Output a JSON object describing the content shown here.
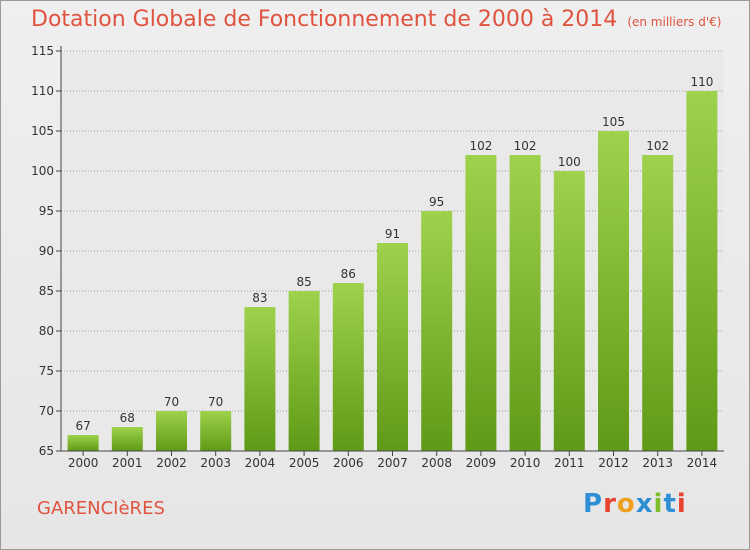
{
  "header": {
    "title": "Dotation Globale de Fonctionnement de 2000 à 2014",
    "unit": "(en milliers d'€)"
  },
  "footer": {
    "commune": "GARENCIèRES",
    "logo_text": "Proxiti",
    "logo_colors": [
      "#2f8fd6",
      "#e8432e",
      "#f0a020",
      "#2f8fd6",
      "#7cbf2a",
      "#2f8fd6",
      "#e8432e"
    ]
  },
  "colors": {
    "bar_top": "#9fd24c",
    "bar_bottom": "#5f9a16",
    "text": "#e0533f",
    "axis": "#444444",
    "grid": "#9a9a9a"
  },
  "chart_data": {
    "type": "bar",
    "title": "Dotation Globale de Fonctionnement de 2000 à 2014",
    "subtitle": "(en milliers d'€)",
    "xlabel": "",
    "ylabel": "",
    "categories": [
      "2000",
      "2001",
      "2002",
      "2003",
      "2004",
      "2005",
      "2006",
      "2007",
      "2008",
      "2009",
      "2010",
      "2011",
      "2012",
      "2013",
      "2014"
    ],
    "values": [
      67,
      68,
      70,
      70,
      83,
      85,
      86,
      91,
      95,
      102,
      102,
      100,
      105,
      102,
      110
    ],
    "ylim": [
      65,
      115
    ],
    "yticks": [
      65,
      70,
      75,
      80,
      85,
      90,
      95,
      100,
      105,
      110,
      115
    ],
    "grid": true,
    "data_labels": true
  }
}
